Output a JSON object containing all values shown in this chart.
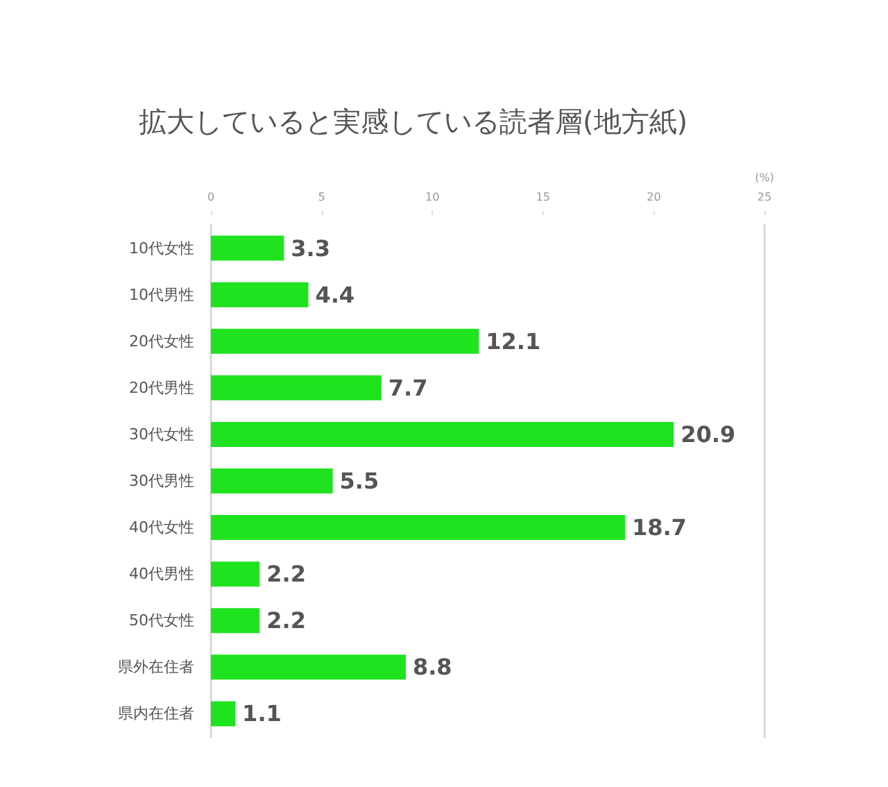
{
  "chart_data": {
    "type": "bar",
    "orientation": "horizontal",
    "title": "拡大していると実感している読者層(地方紙)",
    "xlabel": "(%)",
    "categories": [
      "10代女性",
      "10代男性",
      "20代女性",
      "20代男性",
      "30代女性",
      "30代男性",
      "40代女性",
      "40代男性",
      "50代女性",
      "県外在住者",
      "県内在住者"
    ],
    "values": [
      3.3,
      4.4,
      12.1,
      7.7,
      20.9,
      5.5,
      18.7,
      2.2,
      2.2,
      8.8,
      1.1
    ],
    "color": "#1ee31e",
    "xlim": [
      0,
      25
    ],
    "xticks": [
      0,
      5,
      10,
      15,
      20,
      25
    ],
    "data_labels": true
  }
}
